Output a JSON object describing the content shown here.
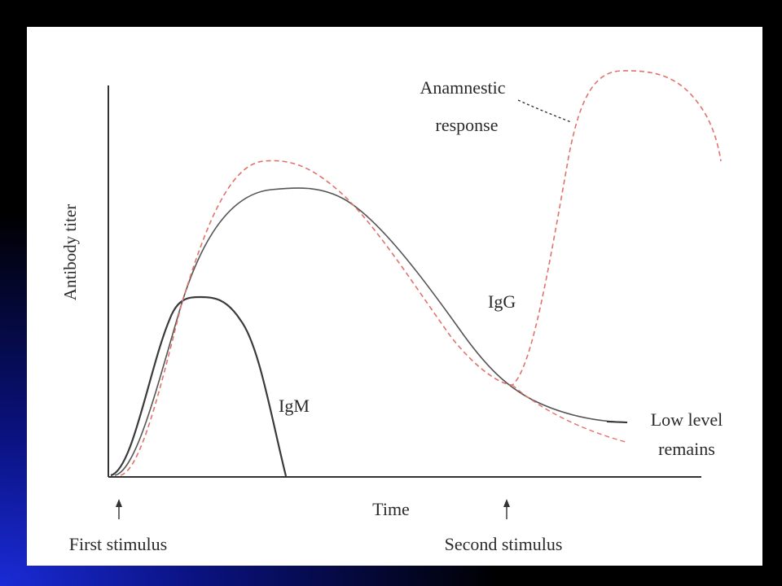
{
  "diagram": {
    "y_axis_label": "Antibody titer",
    "x_axis_label": "Time",
    "labels": {
      "anamnestic_line1": "Anamnestic",
      "anamnestic_line2": "response",
      "igg": "IgG",
      "igm": "IgM",
      "low_level_line1": "Low level",
      "low_level_line2": "remains",
      "first_stimulus": "First stimulus",
      "second_stimulus": "Second stimulus"
    },
    "colors": {
      "axis": "#333333",
      "igm": "#3a3a3a",
      "igg": "#555555",
      "anamnestic": "#e0736a"
    }
  }
}
